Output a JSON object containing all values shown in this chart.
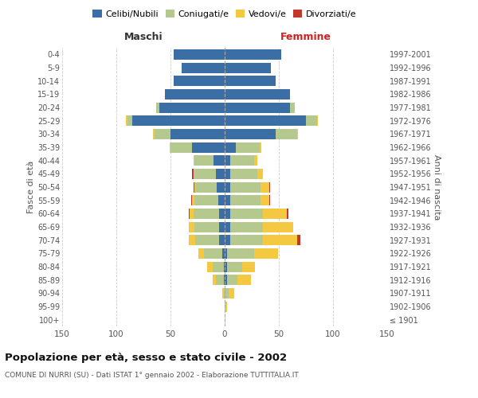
{
  "age_groups": [
    "100+",
    "95-99",
    "90-94",
    "85-89",
    "80-84",
    "75-79",
    "70-74",
    "65-69",
    "60-64",
    "55-59",
    "50-54",
    "45-49",
    "40-44",
    "35-39",
    "30-34",
    "25-29",
    "20-24",
    "15-19",
    "10-14",
    "5-9",
    "0-4"
  ],
  "birth_years": [
    "≤ 1901",
    "1902-1906",
    "1907-1911",
    "1912-1916",
    "1917-1921",
    "1922-1926",
    "1927-1931",
    "1932-1936",
    "1937-1941",
    "1942-1946",
    "1947-1951",
    "1952-1956",
    "1957-1961",
    "1962-1966",
    "1967-1971",
    "1972-1976",
    "1977-1981",
    "1982-1986",
    "1987-1991",
    "1992-1996",
    "1997-2001"
  ],
  "males": {
    "celibi": [
      0,
      0,
      0,
      1,
      1,
      2,
      5,
      5,
      5,
      6,
      7,
      8,
      10,
      30,
      50,
      85,
      60,
      55,
      47,
      40,
      47
    ],
    "coniugati": [
      0,
      0,
      1,
      7,
      10,
      17,
      22,
      23,
      24,
      22,
      20,
      20,
      18,
      20,
      15,
      5,
      3,
      0,
      0,
      0,
      0
    ],
    "vedovi": [
      0,
      0,
      1,
      3,
      5,
      5,
      6,
      5,
      3,
      2,
      1,
      1,
      1,
      1,
      1,
      1,
      0,
      0,
      0,
      0,
      0
    ],
    "divorziati": [
      0,
      0,
      0,
      0,
      0,
      0,
      0,
      0,
      1,
      1,
      1,
      1,
      0,
      0,
      0,
      0,
      0,
      0,
      0,
      0,
      0
    ]
  },
  "females": {
    "nubili": [
      0,
      0,
      0,
      2,
      2,
      2,
      5,
      5,
      5,
      5,
      5,
      5,
      5,
      10,
      47,
      75,
      60,
      60,
      47,
      43,
      52
    ],
    "coniugate": [
      0,
      1,
      4,
      10,
      14,
      25,
      30,
      30,
      30,
      28,
      28,
      25,
      22,
      22,
      20,
      10,
      5,
      0,
      0,
      0,
      0
    ],
    "vedove": [
      0,
      1,
      5,
      12,
      12,
      22,
      32,
      28,
      22,
      8,
      8,
      5,
      3,
      2,
      1,
      1,
      0,
      0,
      0,
      0,
      0
    ],
    "divorziate": [
      0,
      0,
      0,
      0,
      0,
      0,
      3,
      0,
      2,
      1,
      1,
      0,
      0,
      0,
      0,
      0,
      0,
      0,
      0,
      0,
      0
    ]
  },
  "colors": {
    "celibi": "#3a6ea5",
    "coniugati": "#b5c98e",
    "vedovi": "#f5c842",
    "divorziati": "#c0392b"
  },
  "title": "Popolazione per età, sesso e stato civile - 2002",
  "subtitle": "COMUNE DI NURRI (SU) - Dati ISTAT 1° gennaio 2002 - Elaborazione TUTTITALIA.IT",
  "xlabel_left": "Maschi",
  "xlabel_right": "Femmine",
  "ylabel_left": "Fasce di età",
  "ylabel_right": "Anni di nascita",
  "xlim": 150,
  "legend_labels": [
    "Celibi/Nubili",
    "Coniugati/e",
    "Vedovi/e",
    "Divorziati/e"
  ],
  "bg_color": "#ffffff",
  "grid_color": "#cccccc"
}
